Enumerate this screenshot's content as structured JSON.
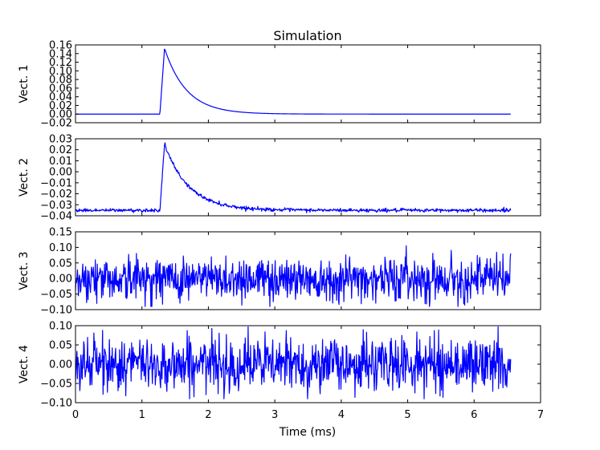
{
  "chart_data": {
    "type": "line",
    "title": "Simulation",
    "xlabel": "Time (ms)",
    "xlim": [
      0,
      7
    ],
    "x_ticks": [
      "0",
      "1",
      "2",
      "3",
      "4",
      "5",
      "6",
      "7"
    ],
    "line_color": "#0000ff",
    "panels": [
      {
        "ylabel": "Vect. 1",
        "ylim": [
          -0.02,
          0.16
        ],
        "y_ticks": [
          "0.16",
          "0.14",
          "0.12",
          "0.10",
          "0.08",
          "0.06",
          "0.04",
          "0.02",
          "0.00",
          "−0.02"
        ],
        "series": {
          "kind": "pulse",
          "baseline": 0.0,
          "onset_ms": 1.27,
          "peak": 0.152,
          "rise_ms": 0.07,
          "decay_tau_ms": 0.33,
          "noise": 0.0,
          "end_ms": 6.55
        }
      },
      {
        "ylabel": "Vect. 2",
        "ylim": [
          -0.04,
          0.03
        ],
        "y_ticks": [
          "0.03",
          "0.02",
          "0.01",
          "0.00",
          "−0.01",
          "−0.02",
          "−0.03",
          "−0.04"
        ],
        "series": {
          "kind": "pulse",
          "baseline": -0.035,
          "onset_ms": 1.27,
          "peak": 0.025,
          "rise_ms": 0.07,
          "decay_tau_ms": 0.36,
          "noise": 0.0008,
          "end_ms": 6.55
        }
      },
      {
        "ylabel": "Vect. 3",
        "ylim": [
          -0.1,
          0.15
        ],
        "y_ticks": [
          "0.15",
          "0.10",
          "0.05",
          "0.00",
          "−0.05",
          "−0.10"
        ],
        "series": {
          "kind": "noise",
          "mean": 0.0,
          "std": 0.035,
          "clip": [
            -0.09,
            0.105
          ],
          "end_ms": 6.55
        }
      },
      {
        "ylabel": "Vect. 4",
        "ylim": [
          -0.1,
          0.1
        ],
        "y_ticks": [
          "0.10",
          "0.05",
          "0.00",
          "−0.05",
          "−0.10"
        ],
        "series": {
          "kind": "noise",
          "mean": 0.0,
          "std": 0.035,
          "clip": [
            -0.09,
            0.097
          ],
          "end_ms": 6.55
        }
      }
    ]
  }
}
